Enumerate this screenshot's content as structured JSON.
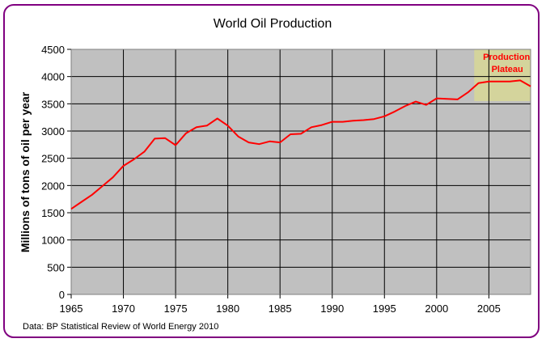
{
  "chart_data": {
    "type": "line",
    "title": "World Oil Production",
    "xlabel": "",
    "ylabel": "Millions of tons of oil per year",
    "source": "Data: BP Statistical Review of World Energy 2010",
    "xlim": [
      1965,
      2009
    ],
    "ylim": [
      0,
      4500
    ],
    "x_ticks": [
      "1965",
      "1970",
      "1975",
      "1980",
      "1985",
      "1990",
      "1995",
      "2000",
      "2005"
    ],
    "y_ticks": [
      "0",
      "500",
      "1000",
      "1500",
      "2000",
      "2500",
      "3000",
      "3500",
      "4000",
      "4500"
    ],
    "grid": true,
    "legend": "none",
    "annotation": {
      "text_line1": "Production",
      "text_line2": "Plateau",
      "x_range": [
        2003.6,
        2009
      ],
      "y_range": [
        3550,
        4500
      ]
    },
    "series": [
      {
        "color": "#ff0000",
        "points": [
          [
            1965,
            1570
          ],
          [
            1966,
            1700
          ],
          [
            1967,
            1830
          ],
          [
            1968,
            1990
          ],
          [
            1969,
            2150
          ],
          [
            1970,
            2360
          ],
          [
            1971,
            2480
          ],
          [
            1972,
            2620
          ],
          [
            1973,
            2860
          ],
          [
            1974,
            2870
          ],
          [
            1975,
            2740
          ],
          [
            1976,
            2960
          ],
          [
            1977,
            3070
          ],
          [
            1978,
            3100
          ],
          [
            1979,
            3230
          ],
          [
            1980,
            3100
          ],
          [
            1981,
            2900
          ],
          [
            1982,
            2790
          ],
          [
            1983,
            2760
          ],
          [
            1984,
            2810
          ],
          [
            1985,
            2790
          ],
          [
            1986,
            2940
          ],
          [
            1987,
            2950
          ],
          [
            1988,
            3070
          ],
          [
            1989,
            3110
          ],
          [
            1990,
            3170
          ],
          [
            1991,
            3170
          ],
          [
            1992,
            3190
          ],
          [
            1993,
            3200
          ],
          [
            1994,
            3220
          ],
          [
            1995,
            3270
          ],
          [
            1996,
            3360
          ],
          [
            1997,
            3460
          ],
          [
            1998,
            3540
          ],
          [
            1999,
            3480
          ],
          [
            2000,
            3600
          ],
          [
            2001,
            3590
          ],
          [
            2002,
            3580
          ],
          [
            2003,
            3710
          ],
          [
            2004,
            3880
          ],
          [
            2005,
            3910
          ],
          [
            2006,
            3910
          ],
          [
            2007,
            3910
          ],
          [
            2008,
            3930
          ],
          [
            2009,
            3820
          ]
        ]
      }
    ]
  },
  "colors": {
    "frame_border": "#800080",
    "plot_background": "#c0c0c0",
    "plateau_fill": "#d4d49c",
    "annotation_text": "#ff0000",
    "line": "#ff0000"
  }
}
